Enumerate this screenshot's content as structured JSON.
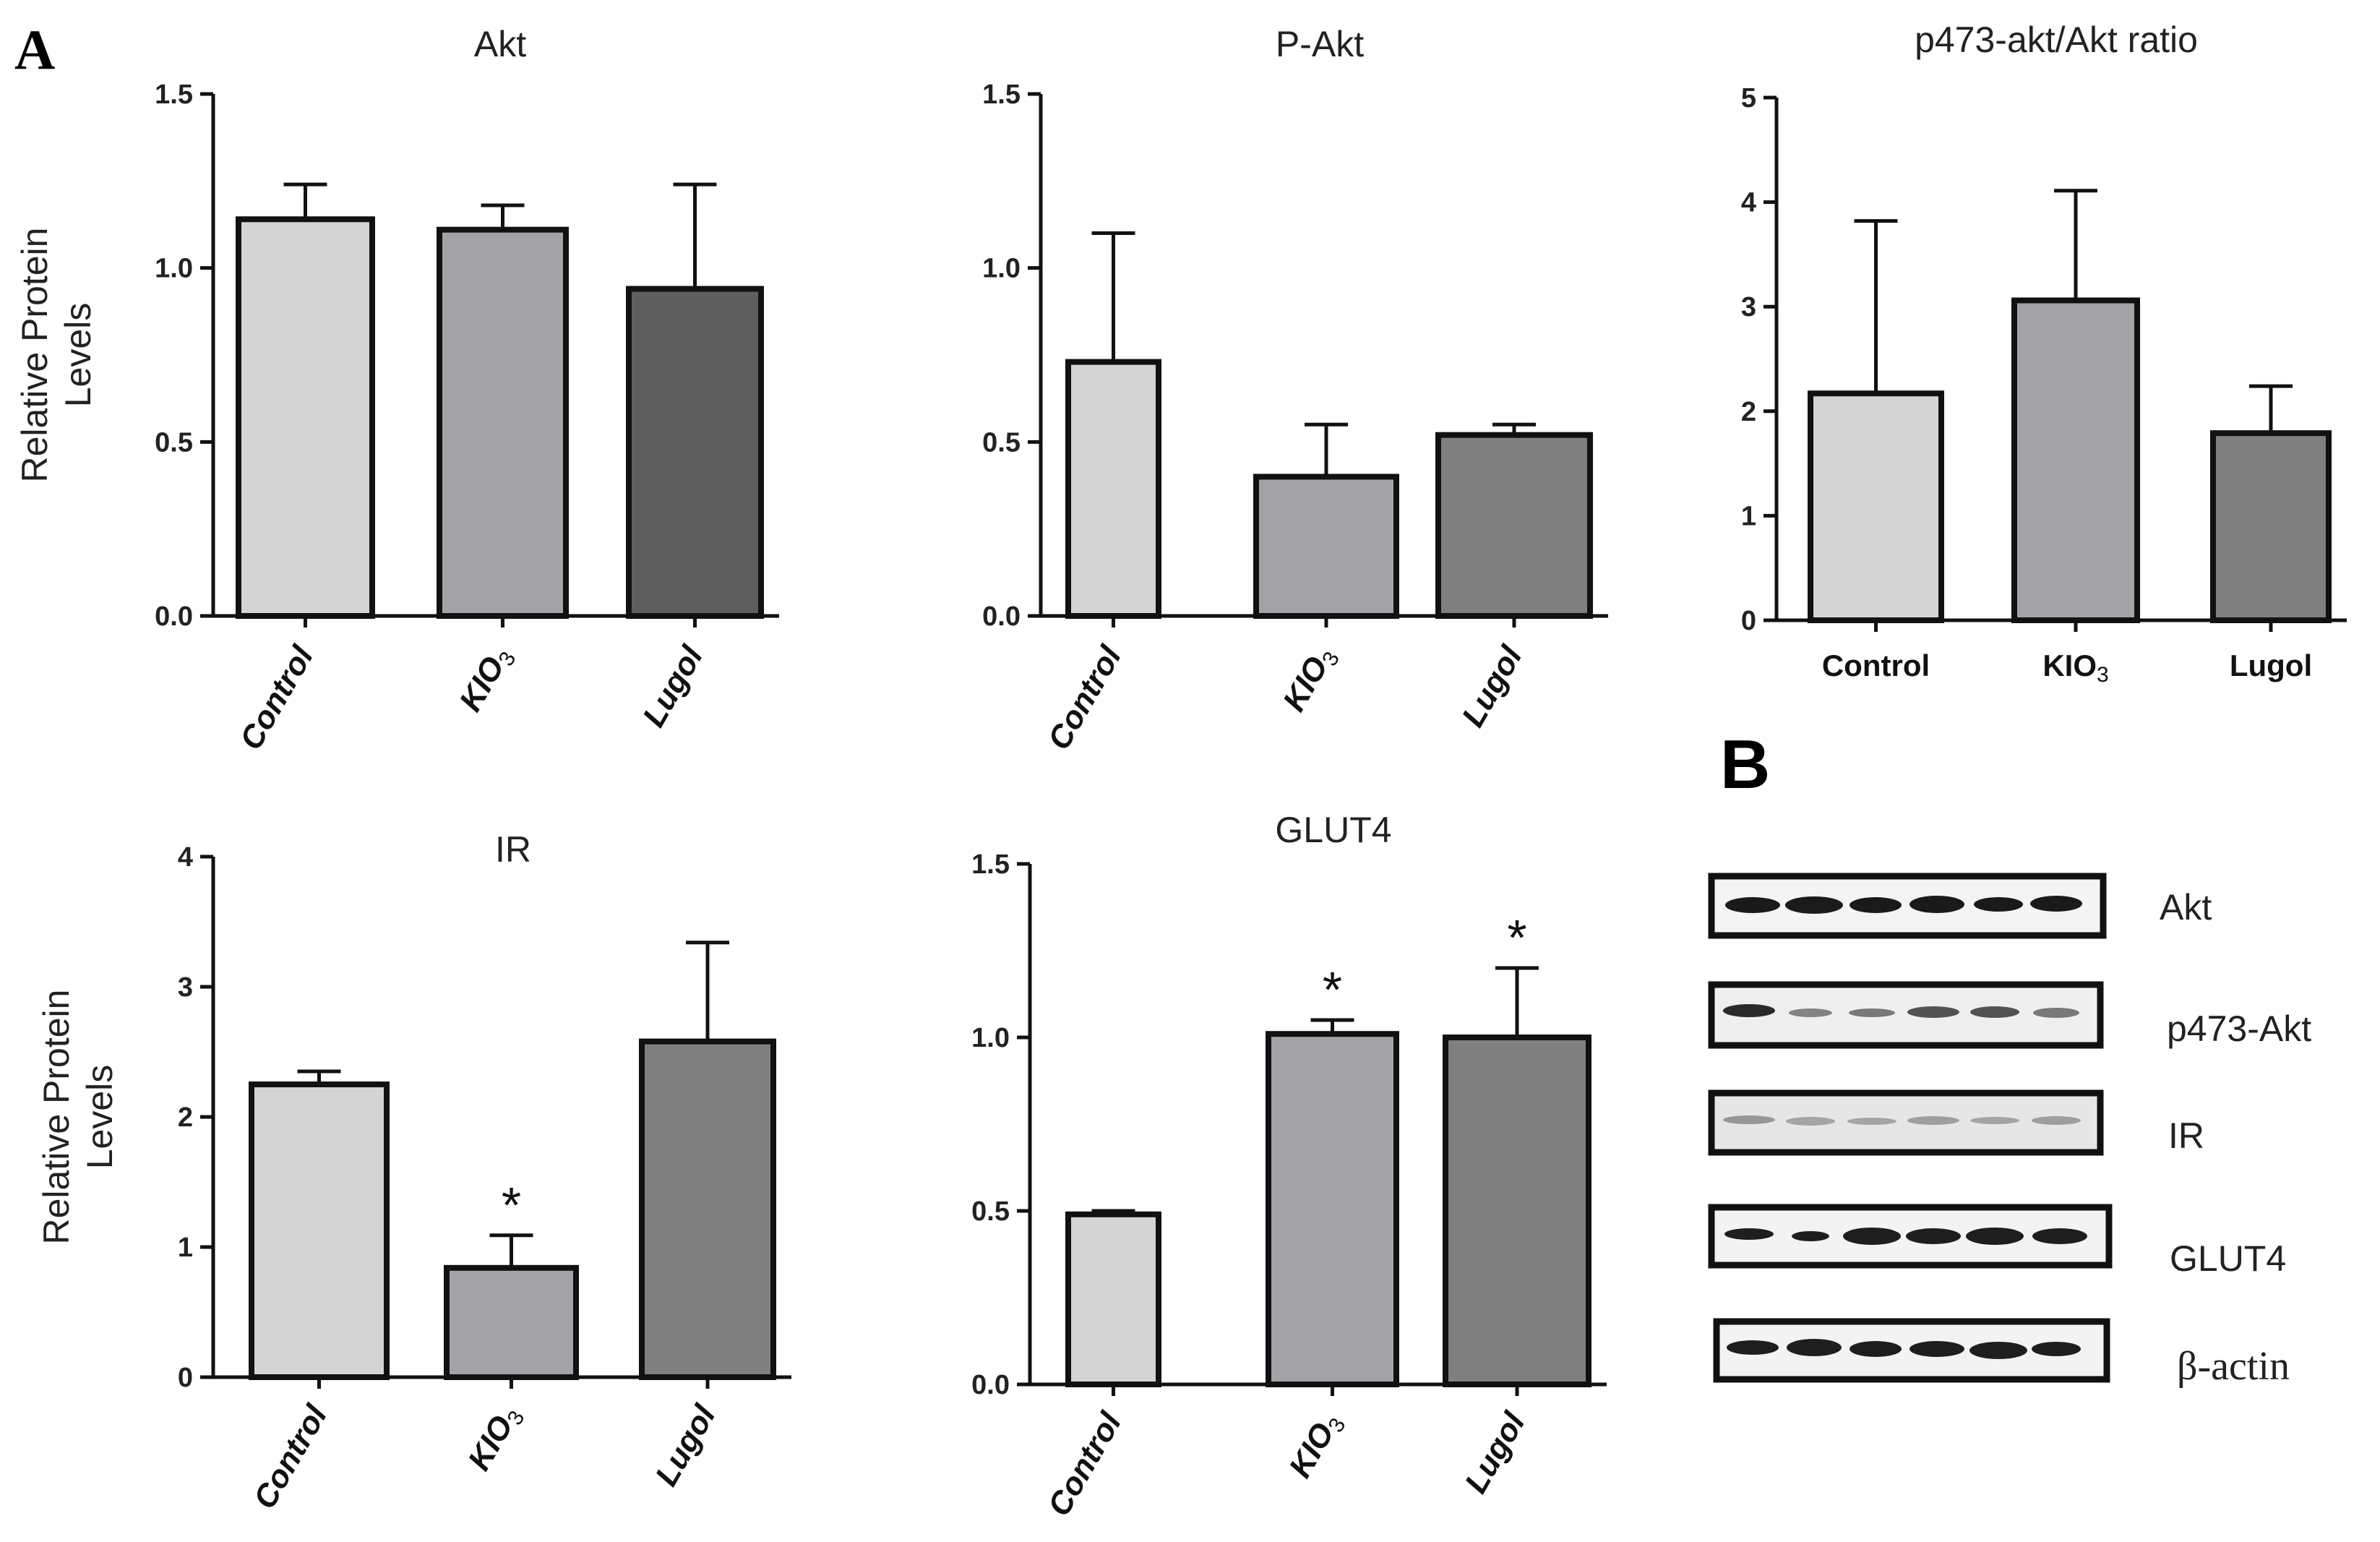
{
  "panel_a_label": "A",
  "panel_b_label": "B",
  "y_axis_label": [
    "Relative Protein",
    "Levels"
  ],
  "colors": {
    "control": "#d4d4d4",
    "kio3": "#a2a2a7",
    "lugol_dark": "#5e5e5e",
    "lugol": "#7f7f7f",
    "axis": "#111111"
  },
  "chart_data": [
    {
      "type": "bar",
      "title": "Akt",
      "categories": [
        "Control",
        "KIO",
        "Lugol"
      ],
      "values": [
        1.14,
        1.11,
        0.94
      ],
      "errors": [
        0.1,
        0.07,
        0.3
      ],
      "stars": [
        "",
        "",
        ""
      ],
      "ylim": [
        0,
        1.5
      ],
      "yticks": [
        "0.0",
        "0.5",
        "1.0",
        "1.5"
      ],
      "ylabel": "Relative Protein Levels"
    },
    {
      "type": "bar",
      "title": "P-Akt",
      "categories": [
        "Control",
        "KIO",
        "Lugol"
      ],
      "values": [
        0.73,
        0.4,
        0.52
      ],
      "errors": [
        0.37,
        0.15,
        0.03
      ],
      "stars": [
        "",
        "",
        ""
      ],
      "ylim": [
        0,
        1.5
      ],
      "yticks": [
        "0.0",
        "0.5",
        "1.0",
        "1.5"
      ],
      "ylabel": ""
    },
    {
      "type": "bar",
      "title": "p473-akt/Akt ratio",
      "categories": [
        "Control",
        "KIO",
        "Lugol"
      ],
      "values": [
        2.17,
        3.06,
        1.79
      ],
      "errors": [
        1.65,
        1.05,
        0.45
      ],
      "stars": [
        "",
        "",
        ""
      ],
      "ylim": [
        0,
        5
      ],
      "yticks": [
        "0",
        "1",
        "2",
        "3",
        "4",
        "5"
      ],
      "ylabel": ""
    },
    {
      "type": "bar",
      "title": "IR",
      "categories": [
        "Control",
        "KIO",
        "Lugol"
      ],
      "values": [
        2.25,
        0.84,
        2.58
      ],
      "errors": [
        0.1,
        0.25,
        0.76
      ],
      "stars": [
        "",
        "*",
        ""
      ],
      "ylim": [
        0,
        4
      ],
      "yticks": [
        "0",
        "1",
        "2",
        "3",
        "4"
      ],
      "ylabel": "Relative Protein Levels"
    },
    {
      "type": "bar",
      "title": "GLUT4",
      "categories": [
        "Control",
        "KIO",
        "Lugol"
      ],
      "values": [
        0.49,
        1.01,
        1.0
      ],
      "errors": [
        0.01,
        0.04,
        0.2
      ],
      "stars": [
        "",
        "*",
        "*"
      ],
      "ylim": [
        0,
        1.5
      ],
      "yticks": [
        "0.0",
        "0.5",
        "1.0",
        "1.5"
      ],
      "ylabel": ""
    }
  ],
  "subscript_3": "3",
  "blots": [
    "Akt",
    "p473-Akt",
    "IR",
    "GLUT4",
    "β-actin"
  ]
}
